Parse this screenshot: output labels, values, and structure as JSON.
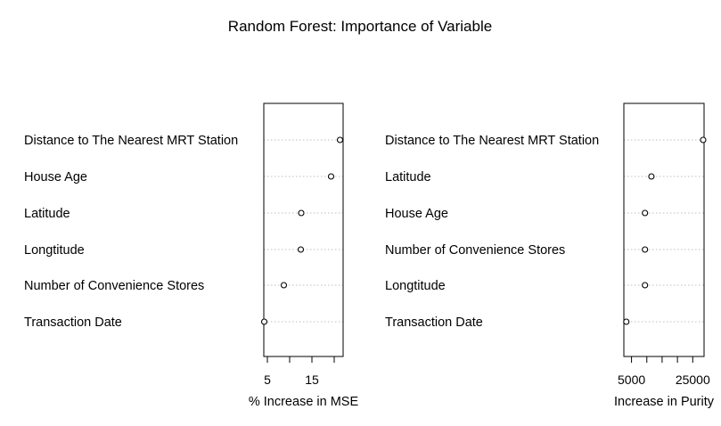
{
  "chart_data": {
    "title": "Random Forest: Importance of Variable",
    "type": "scatter",
    "panels": [
      {
        "xlabel": "% Increase in MSE",
        "xlim": [
          4.2,
          22.0
        ],
        "xticks": [
          5,
          10,
          15,
          20
        ],
        "xtick_labels": [
          "5",
          "",
          "15",
          ""
        ],
        "grid": "dotted horizontal",
        "variables": [
          {
            "name": "Distance to The Nearest MRT Station",
            "value": 21.3
          },
          {
            "name": "House Age",
            "value": 19.3
          },
          {
            "name": "Latitude",
            "value": 12.6
          },
          {
            "name": "Longtitude",
            "value": 12.5
          },
          {
            "name": "Number of Convenience Stores",
            "value": 8.7
          },
          {
            "name": "Transaction Date",
            "value": 4.3
          }
        ]
      },
      {
        "xlabel": "Increase in Purity",
        "xlim": [
          2500,
          28700
        ],
        "xticks": [
          5000,
          10000,
          15000,
          20000,
          25000
        ],
        "xtick_labels": [
          "5000",
          "",
          "",
          "",
          "25000"
        ],
        "grid": "dotted horizontal",
        "variables": [
          {
            "name": "Distance to The Nearest MRT Station",
            "value": 28400
          },
          {
            "name": "Latitude",
            "value": 11500
          },
          {
            "name": "House Age",
            "value": 9400
          },
          {
            "name": "Number of Convenience Stores",
            "value": 9400
          },
          {
            "name": "Longtitude",
            "value": 9400
          },
          {
            "name": "Transaction Date",
            "value": 3300
          }
        ]
      }
    ]
  }
}
